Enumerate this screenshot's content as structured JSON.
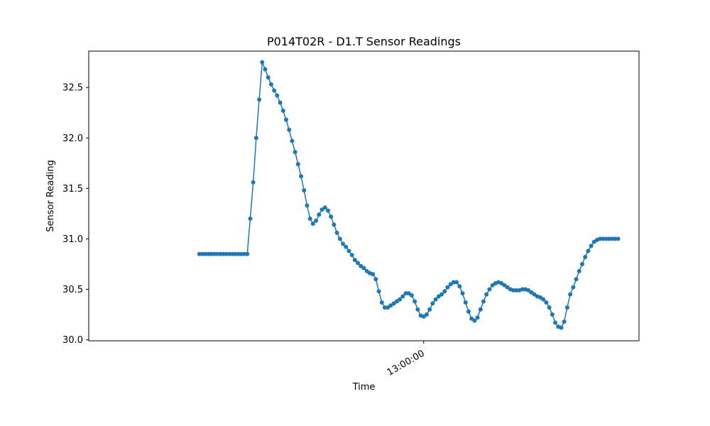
{
  "chart_data": {
    "type": "line",
    "title": "P014T02R - D1.T Sensor Readings",
    "xlabel": "Time",
    "ylabel": "Sensor Reading",
    "ylim": [
      29.99,
      32.86
    ],
    "y_ticks": [
      30.0,
      30.5,
      31.0,
      31.5,
      32.0,
      32.5
    ],
    "x_ticks": [
      {
        "label": "13:00:00",
        "x": 75
      }
    ],
    "xlim": [
      -37,
      147
    ],
    "grid": false,
    "legend": "none",
    "marker": "circle",
    "color": "#1f77b4",
    "series": [
      {
        "x": [
          0,
          1,
          2,
          3,
          4,
          5,
          6,
          7,
          8,
          9,
          10,
          11,
          12,
          13,
          14,
          15,
          16,
          17,
          18,
          19,
          20,
          21,
          22,
          23,
          24,
          25,
          26,
          27,
          28,
          29,
          30,
          31,
          32,
          33,
          34,
          35,
          36,
          37,
          38,
          39,
          40,
          41,
          42,
          43,
          44,
          45,
          46,
          47,
          48,
          49,
          50,
          51,
          52,
          53,
          54,
          55,
          56,
          57,
          58,
          59,
          60,
          61,
          62,
          63,
          64,
          65,
          66,
          67,
          68,
          69,
          70,
          71,
          72,
          73,
          74,
          75,
          76,
          77,
          78,
          79,
          80,
          81,
          82,
          83,
          84,
          85,
          86,
          87,
          88,
          89,
          90,
          91,
          92,
          93,
          94,
          95,
          96,
          97,
          98,
          99,
          100,
          101,
          102,
          103,
          104,
          105,
          106,
          107,
          108,
          109,
          110,
          111,
          112,
          113,
          114,
          115,
          116,
          117,
          118,
          119,
          120,
          121,
          122,
          123,
          124,
          125,
          126,
          127,
          128,
          129,
          130,
          131,
          132,
          133,
          134,
          135,
          136,
          137,
          138,
          139,
          140
        ],
        "values": [
          30.85,
          30.85,
          30.85,
          30.85,
          30.85,
          30.85,
          30.85,
          30.85,
          30.85,
          30.85,
          30.85,
          30.85,
          30.85,
          30.85,
          30.85,
          30.85,
          30.85,
          31.2,
          31.56,
          32.0,
          32.38,
          32.75,
          32.68,
          32.6,
          32.53,
          32.47,
          32.42,
          32.35,
          32.27,
          32.18,
          32.08,
          31.97,
          31.86,
          31.74,
          31.62,
          31.48,
          31.33,
          31.2,
          31.15,
          31.18,
          31.24,
          31.29,
          31.31,
          31.28,
          31.22,
          31.14,
          31.06,
          31.0,
          30.95,
          30.92,
          30.88,
          30.84,
          30.79,
          30.76,
          30.73,
          30.71,
          30.68,
          30.66,
          30.65,
          30.6,
          30.48,
          30.37,
          30.32,
          30.32,
          30.34,
          30.36,
          30.38,
          30.4,
          30.43,
          30.46,
          30.46,
          30.44,
          30.38,
          30.3,
          30.24,
          30.23,
          30.25,
          30.3,
          30.36,
          30.4,
          30.43,
          30.45,
          30.48,
          30.52,
          30.55,
          30.57,
          30.57,
          30.53,
          30.46,
          30.37,
          30.28,
          30.21,
          30.19,
          30.22,
          30.3,
          30.38,
          30.45,
          30.5,
          30.54,
          30.56,
          30.57,
          30.56,
          30.54,
          30.52,
          30.5,
          30.49,
          30.49,
          30.49,
          30.5,
          30.5,
          30.49,
          30.47,
          30.45,
          30.43,
          30.42,
          30.4,
          30.37,
          30.32,
          30.25,
          30.17,
          30.13,
          30.12,
          30.18,
          30.32,
          30.45,
          30.52,
          30.6,
          30.68,
          30.75,
          30.82,
          30.88,
          30.93,
          30.97,
          30.99,
          31.0,
          31.0,
          31.0,
          31.0,
          31.0,
          31.0,
          31.0
        ]
      }
    ]
  }
}
